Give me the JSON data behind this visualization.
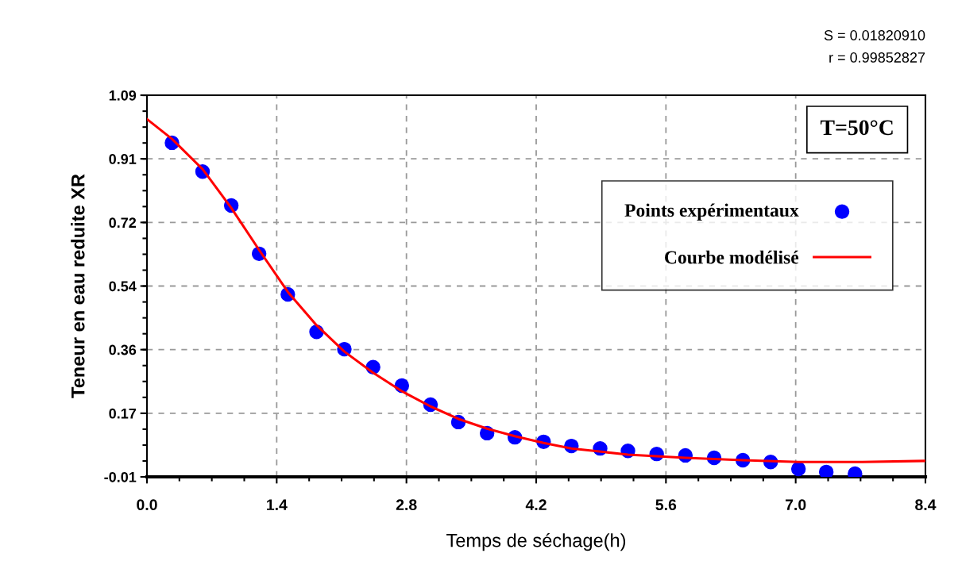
{
  "chart_data": {
    "type": "scatter",
    "xlabel": "Temps de séchage(h)",
    "ylabel": "Teneur en eau reduite XR",
    "annotations": [
      "S = 0.01820910",
      "r = 0.99852827",
      "T=50°C"
    ],
    "xlim": [
      0.0,
      8.4
    ],
    "xticks": [
      {
        "value": 0.0,
        "label": "0.0"
      },
      1.4,
      2.8,
      4.2,
      5.6,
      {
        "value": 7.0,
        "label": "7.0"
      },
      8.4
    ],
    "ylim": [
      -0.01,
      1.09
    ],
    "yticks": [
      {
        "value": -0.01,
        "label": "-0.01"
      },
      {
        "value": 0.1733,
        "label": "0.17"
      },
      {
        "value": 0.3567,
        "label": "0.36"
      },
      {
        "value": 0.54,
        "label": "0.54"
      },
      {
        "value": 0.7233,
        "label": "0.72"
      },
      {
        "value": 0.9067,
        "label": "0.91"
      },
      {
        "value": 1.09,
        "label": "1.09"
      }
    ],
    "grid": true,
    "legend": "top right",
    "series": [
      {
        "name": "Points expérimentaux",
        "marker": "circle",
        "color": "#0000ff",
        "x": [
          0.27,
          0.6,
          0.91,
          1.21,
          1.52,
          1.83,
          2.13,
          2.44,
          2.75,
          3.06,
          3.36,
          3.67,
          3.97,
          4.28,
          4.58,
          4.89,
          5.19,
          5.5,
          5.81,
          6.12,
          6.43,
          6.73,
          7.03,
          7.33,
          7.64
        ],
        "values": [
          0.953,
          0.87,
          0.772,
          0.633,
          0.516,
          0.408,
          0.358,
          0.306,
          0.253,
          0.198,
          0.148,
          0.116,
          0.104,
          0.091,
          0.079,
          0.072,
          0.065,
          0.056,
          0.052,
          0.045,
          0.038,
          0.033,
          0.013,
          0.004,
          -0.001
        ]
      },
      {
        "name": "Courbe modélisé",
        "type": "line",
        "marker": "none",
        "line_style": "solid",
        "color": "#ff0000",
        "x": [
          0.0,
          0.27,
          0.6,
          0.91,
          1.21,
          1.52,
          1.83,
          2.13,
          2.44,
          2.75,
          3.06,
          3.36,
          3.67,
          3.97,
          4.28,
          4.58,
          5.19,
          5.81,
          6.43,
          7.03,
          7.72,
          8.4
        ],
        "values": [
          1.021,
          0.964,
          0.877,
          0.765,
          0.644,
          0.523,
          0.427,
          0.351,
          0.29,
          0.237,
          0.193,
          0.157,
          0.129,
          0.107,
          0.088,
          0.072,
          0.054,
          0.045,
          0.038,
          0.033,
          0.033,
          0.036
        ]
      }
    ]
  }
}
